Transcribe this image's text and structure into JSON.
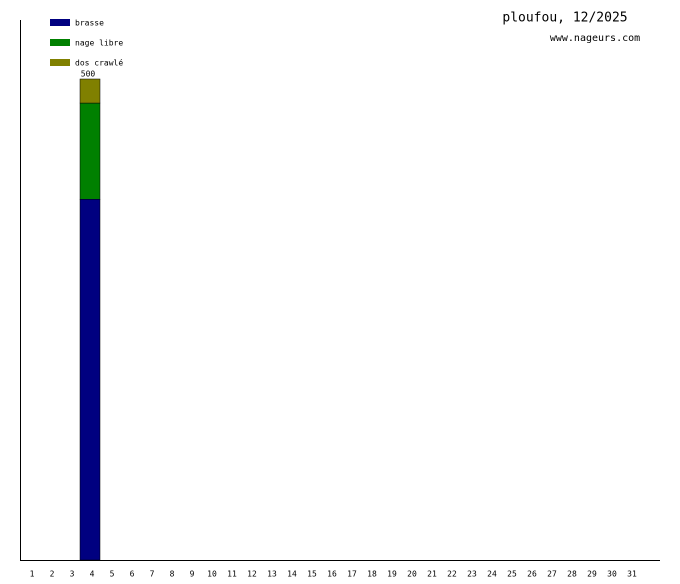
{
  "chart_data": {
    "type": "stacked-bar",
    "title": "ploufou, 12/2025",
    "subtitle": "www.nageurs.com",
    "categories": [
      "1",
      "2",
      "3",
      "4",
      "5",
      "6",
      "7",
      "8",
      "9",
      "10",
      "11",
      "12",
      "13",
      "14",
      "15",
      "16",
      "17",
      "18",
      "19",
      "20",
      "21",
      "22",
      "23",
      "24",
      "25",
      "26",
      "27",
      "28",
      "29",
      "30",
      "31"
    ],
    "series": [
      {
        "name": "brasse",
        "color": "#000080",
        "values": [
          0,
          0,
          0,
          375,
          0,
          0,
          0,
          0,
          0,
          0,
          0,
          0,
          0,
          0,
          0,
          0,
          0,
          0,
          0,
          0,
          0,
          0,
          0,
          0,
          0,
          0,
          0,
          0,
          0,
          0,
          0
        ]
      },
      {
        "name": "nage libre",
        "color": "#008000",
        "values": [
          0,
          0,
          0,
          100,
          0,
          0,
          0,
          0,
          0,
          0,
          0,
          0,
          0,
          0,
          0,
          0,
          0,
          0,
          0,
          0,
          0,
          0,
          0,
          0,
          0,
          0,
          0,
          0,
          0,
          0,
          0
        ]
      },
      {
        "name": "dos crawlé",
        "color": "#808000",
        "values": [
          0,
          0,
          0,
          25,
          0,
          0,
          0,
          0,
          0,
          0,
          0,
          0,
          0,
          0,
          0,
          0,
          0,
          0,
          0,
          0,
          0,
          0,
          0,
          0,
          0,
          0,
          0,
          0,
          0,
          0,
          0
        ]
      }
    ],
    "totals": [
      null,
      null,
      null,
      500,
      null,
      null,
      null,
      null,
      null,
      null,
      null,
      null,
      null,
      null,
      null,
      null,
      null,
      null,
      null,
      null,
      null,
      null,
      null,
      null,
      null,
      null,
      null,
      null,
      null,
      null,
      null
    ],
    "legend": "top-left"
  }
}
